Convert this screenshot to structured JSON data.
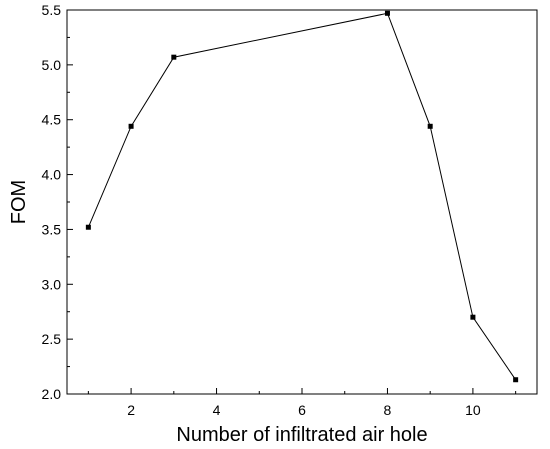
{
  "chart_data": {
    "type": "line",
    "xlabel": "Number of infiltrated air hole",
    "ylabel": "FOM",
    "xlim": [
      0.5,
      11.5
    ],
    "ylim": [
      2.0,
      5.5
    ],
    "xticks": [
      2,
      4,
      6,
      8,
      10
    ],
    "yticks": [
      2.0,
      2.5,
      3.0,
      3.5,
      4.0,
      4.5,
      5.0,
      5.5
    ],
    "xtick_labels": [
      "2",
      "4",
      "6",
      "8",
      "10"
    ],
    "ytick_labels": [
      "2.0",
      "2.5",
      "3.0",
      "3.5",
      "4.0",
      "4.5",
      "5.0",
      "5.5"
    ],
    "grid": false,
    "series": [
      {
        "marker": "square",
        "color": "#000000",
        "x": [
          1,
          2,
          3,
          8,
          9,
          10,
          11
        ],
        "y": [
          3.52,
          4.44,
          5.07,
          5.47,
          4.44,
          2.7,
          2.13
        ]
      }
    ]
  }
}
